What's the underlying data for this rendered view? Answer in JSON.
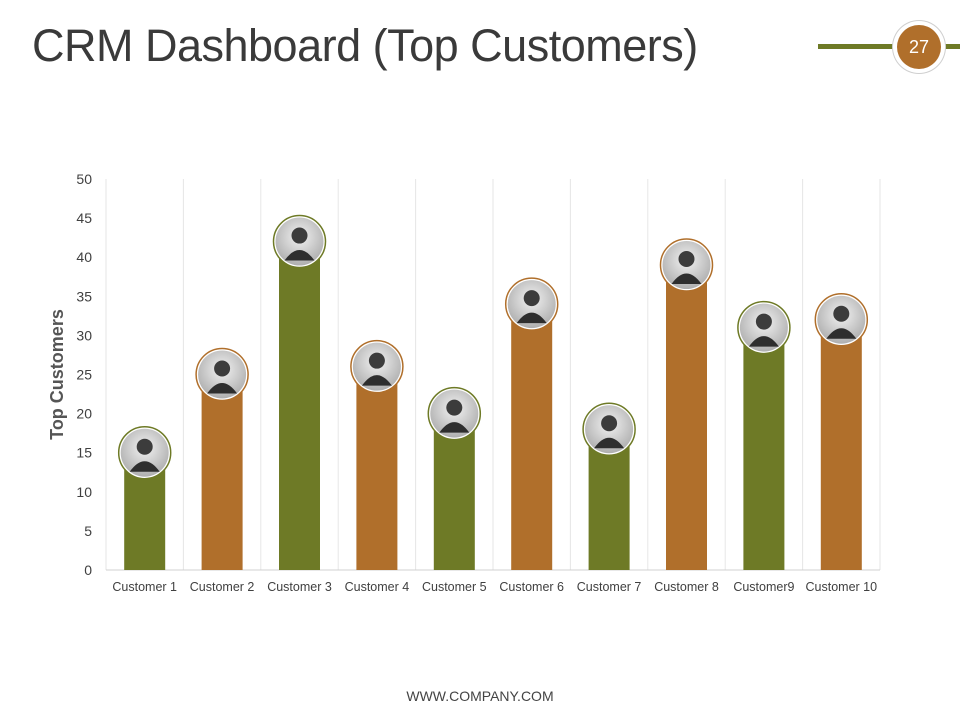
{
  "title": "CRM Dashboard (Top Customers)",
  "page_number": "27",
  "footer": "WWW.COMPANY.COM",
  "colors": {
    "olive": "#6e7a26",
    "brown": "#b06f2b",
    "title": "#3a3a3a",
    "grid": "#e6e6e6",
    "axis_text": "#404040"
  },
  "chart_data": {
    "type": "bar",
    "ylabel": "Top Customers",
    "xlabel": "",
    "ylim": [
      0,
      50
    ],
    "ytick_step": 5,
    "grid": "vertical separators between categories",
    "legend": "none",
    "categories": [
      "Customer 1",
      "Customer 2",
      "Customer 3",
      "Customer 4",
      "Customer 5",
      "Customer 6",
      "Customer 7",
      "Customer 8",
      "Customer9",
      "Customer 10"
    ],
    "values": [
      15,
      25,
      42,
      26,
      20,
      34,
      18,
      39,
      31,
      32
    ],
    "bar_colors": [
      "#6e7a26",
      "#b06f2b",
      "#6e7a26",
      "#b06f2b",
      "#6e7a26",
      "#b06f2b",
      "#6e7a26",
      "#b06f2b",
      "#6e7a26",
      "#b06f2b"
    ],
    "markers": "customer photo avatar on top of each bar"
  }
}
